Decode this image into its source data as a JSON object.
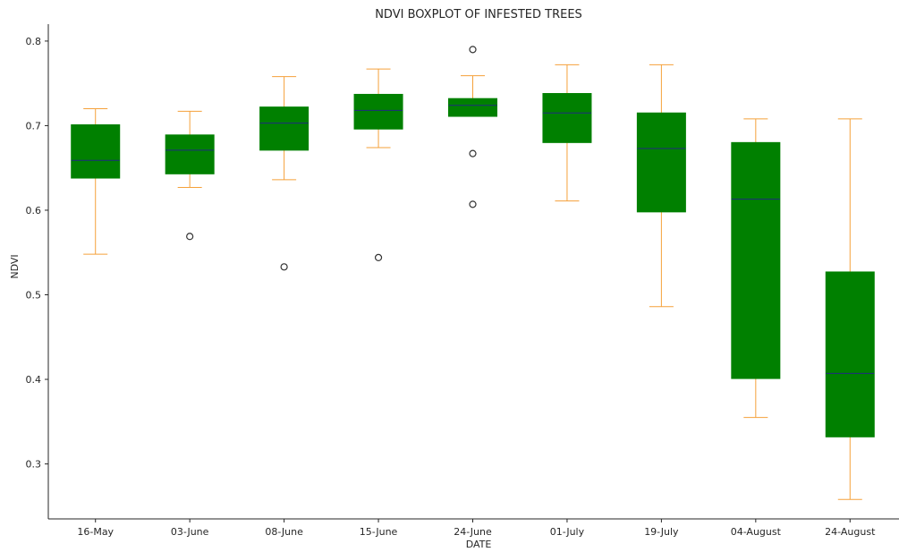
{
  "chart_data": {
    "type": "boxplot",
    "title": "NDVI BOXPLOT OF INFESTED TREES",
    "xlabel": "DATE",
    "ylabel": "NDVI",
    "ylim": [
      0.235,
      0.82
    ],
    "yticks": [
      0.3,
      0.4,
      0.5,
      0.6,
      0.7,
      0.8
    ],
    "ytick_labels": [
      "0.3",
      "0.4",
      "0.5",
      "0.6",
      "0.7",
      "0.8"
    ],
    "grid": false,
    "colors": {
      "box": "#008000",
      "whisker": "#f5a13a",
      "median": "#1f2a80",
      "flier": "#333333",
      "axis": "#262626"
    },
    "categories": [
      "16-May",
      "03-June",
      "08-June",
      "15-June",
      "24-June",
      "01-July",
      "19-July",
      "04-August",
      "24-August"
    ],
    "boxes": [
      {
        "whislo": 0.548,
        "q1": 0.638,
        "med": 0.659,
        "q3": 0.701,
        "whishi": 0.72,
        "fliers": []
      },
      {
        "whislo": 0.627,
        "q1": 0.643,
        "med": 0.671,
        "q3": 0.689,
        "whishi": 0.717,
        "fliers": [
          0.569
        ]
      },
      {
        "whislo": 0.636,
        "q1": 0.671,
        "med": 0.703,
        "q3": 0.722,
        "whishi": 0.758,
        "fliers": [
          0.533
        ]
      },
      {
        "whislo": 0.674,
        "q1": 0.696,
        "med": 0.718,
        "q3": 0.737,
        "whishi": 0.767,
        "fliers": [
          0.544
        ]
      },
      {
        "whislo": 0.711,
        "q1": 0.711,
        "med": 0.724,
        "q3": 0.732,
        "whishi": 0.759,
        "fliers": [
          0.79,
          0.667,
          0.607
        ]
      },
      {
        "whislo": 0.611,
        "q1": 0.68,
        "med": 0.715,
        "q3": 0.738,
        "whishi": 0.772,
        "fliers": []
      },
      {
        "whislo": 0.486,
        "q1": 0.598,
        "med": 0.673,
        "q3": 0.715,
        "whishi": 0.772,
        "fliers": []
      },
      {
        "whislo": 0.355,
        "q1": 0.401,
        "med": 0.613,
        "q3": 0.68,
        "whishi": 0.708,
        "fliers": []
      },
      {
        "whislo": 0.258,
        "q1": 0.332,
        "med": 0.407,
        "q3": 0.527,
        "whishi": 0.708,
        "fliers": []
      }
    ]
  }
}
